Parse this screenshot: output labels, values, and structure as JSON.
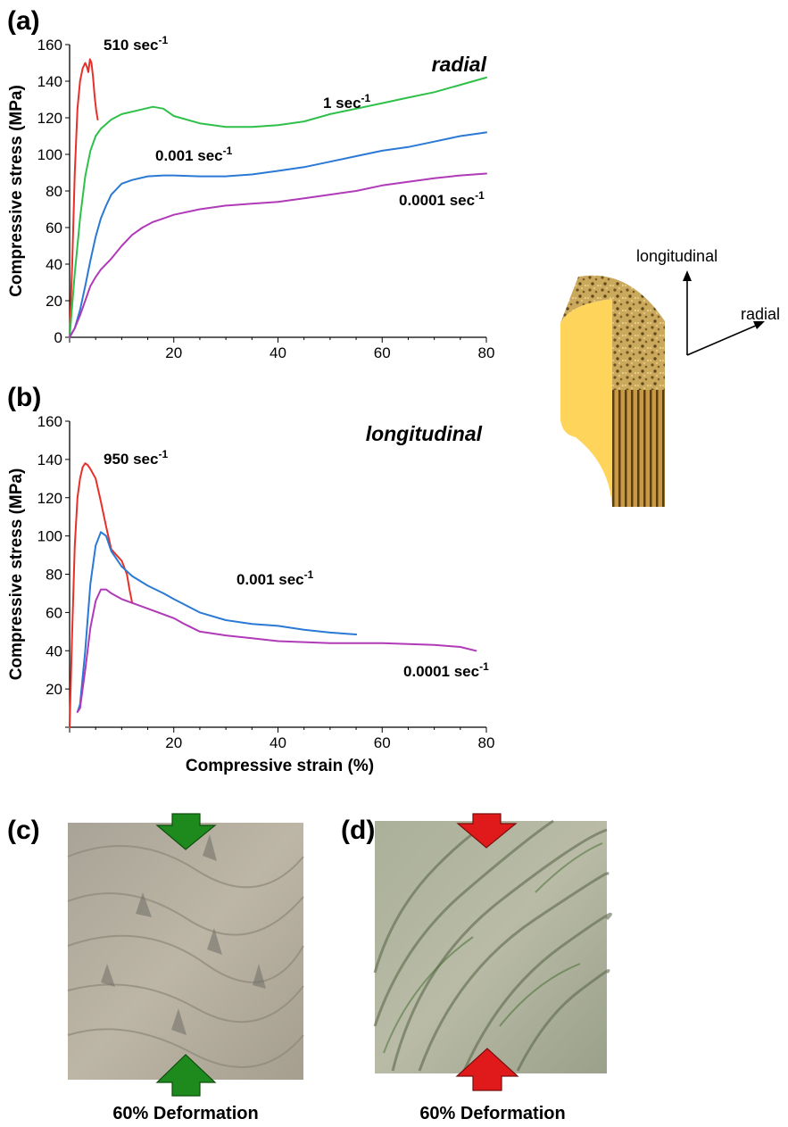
{
  "panels": {
    "a": "(a)",
    "b": "(b)",
    "c": "(c)",
    "d": "(d)"
  },
  "schematic": {
    "longitudinal_label": "longitudinal",
    "radial_label": "radial"
  },
  "photos": {
    "c": {
      "caption": "60% Deformation",
      "arrow_color": "#1e8a1e"
    },
    "d": {
      "caption": "60% Deformation",
      "arrow_color": "#e01a1a"
    }
  },
  "chart_data": [
    {
      "type": "line",
      "orientation_label": "radial",
      "xlabel": "",
      "ylabel": "Compressive stress (MPa)",
      "xlim": [
        0,
        80
      ],
      "ylim": [
        0,
        160
      ],
      "xticks": [
        20,
        40,
        60,
        80
      ],
      "yticks": [
        0,
        20,
        40,
        60,
        80,
        100,
        120,
        140,
        160
      ],
      "grid": false,
      "series": [
        {
          "name": "510 sec-1",
          "label_main": "510 sec",
          "label_exp": "-1",
          "color": "#e8302a",
          "x": [
            0,
            0.5,
            1,
            1.5,
            2,
            2.5,
            3,
            3.3,
            3.6,
            3.9,
            4.2,
            4.5,
            4.8,
            5.1,
            5.4
          ],
          "y": [
            0,
            40,
            90,
            125,
            140,
            147,
            150,
            148,
            145,
            152,
            150,
            142,
            132,
            124,
            119
          ]
        },
        {
          "name": "1 sec-1",
          "label_main": "1 sec",
          "label_exp": "-1",
          "color": "#2fc04a",
          "x": [
            0,
            1,
            2,
            3,
            4,
            5,
            6,
            8,
            10,
            13,
            16,
            18,
            20,
            25,
            30,
            35,
            40,
            45,
            50,
            55,
            60,
            65,
            70,
            75,
            80
          ],
          "y": [
            0,
            35,
            65,
            88,
            102,
            110,
            114,
            119,
            122,
            124,
            126,
            125,
            121,
            117,
            115,
            115,
            116,
            118,
            122,
            125,
            128,
            131,
            134,
            138,
            142
          ]
        },
        {
          "name": "0.001 sec-1",
          "label_main": "0.001 sec",
          "label_exp": "-1",
          "color": "#2a79d4",
          "x": [
            0,
            1,
            2,
            3,
            4,
            5,
            6,
            7,
            8,
            10,
            12,
            15,
            18,
            20,
            25,
            30,
            35,
            40,
            45,
            50,
            55,
            60,
            65,
            70,
            75,
            80
          ],
          "y": [
            0,
            5,
            15,
            28,
            42,
            55,
            65,
            72,
            78,
            84,
            86,
            88,
            88.5,
            88.5,
            88,
            88,
            89,
            91,
            93,
            96,
            99,
            102,
            104,
            107,
            110,
            112
          ]
        },
        {
          "name": "0.0001 sec-1",
          "label_main": "0.0001 sec",
          "label_exp": "-1",
          "color": "#b03ab8",
          "x": [
            0,
            1,
            2,
            3,
            4,
            5,
            6,
            8,
            10,
            12,
            14,
            16,
            18,
            20,
            25,
            30,
            35,
            40,
            45,
            50,
            55,
            60,
            65,
            70,
            75,
            80
          ],
          "y": [
            0,
            5,
            12,
            20,
            28,
            33,
            37,
            43,
            50,
            56,
            60,
            63,
            65,
            67,
            70,
            72,
            73,
            74,
            76,
            78,
            80,
            83,
            85,
            87,
            88.5,
            89.5
          ]
        }
      ]
    },
    {
      "type": "line",
      "orientation_label": "longitudinal",
      "xlabel": "Compressive strain (%)",
      "ylabel": "Compressive stress (MPa)",
      "xlim": [
        0,
        80
      ],
      "ylim": [
        0,
        160
      ],
      "xticks": [
        20,
        40,
        60,
        80
      ],
      "yticks": [
        20,
        40,
        60,
        80,
        100,
        120,
        140,
        160
      ],
      "grid": false,
      "series": [
        {
          "name": "950 sec-1",
          "label_main": "950 sec",
          "label_exp": "-1",
          "color": "#e8302a",
          "x": [
            0,
            0.5,
            1,
            1.5,
            2,
            2.5,
            3,
            3.5,
            4,
            5,
            6,
            7,
            8,
            9,
            10,
            11,
            11.5,
            12
          ],
          "y": [
            0,
            50,
            95,
            120,
            130,
            136,
            138,
            137,
            135,
            130,
            118,
            105,
            93,
            90,
            87,
            80,
            72,
            65
          ]
        },
        {
          "name": "0.001 sec-1",
          "label_main": "0.001 sec",
          "label_exp": "-1",
          "color": "#2a79d4",
          "x": [
            1.5,
            2,
            3,
            4,
            5,
            6,
            7,
            8,
            10,
            12,
            15,
            18,
            20,
            25,
            30,
            35,
            40,
            45,
            50,
            55
          ],
          "y": [
            8,
            12,
            40,
            75,
            95,
            102,
            100,
            92,
            84,
            79,
            74,
            70,
            67,
            60,
            56,
            54,
            53,
            51,
            49.5,
            48.5
          ]
        },
        {
          "name": "0.0001 sec-1",
          "label_main": "0.0001 sec",
          "label_exp": "-1",
          "color": "#b03ab8",
          "x": [
            1.5,
            2,
            3,
            4,
            5,
            6,
            7,
            8,
            10,
            12,
            15,
            18,
            20,
            22,
            25,
            30,
            35,
            40,
            45,
            50,
            55,
            60,
            65,
            70,
            75,
            78
          ],
          "y": [
            8,
            10,
            30,
            52,
            66,
            72,
            72,
            70,
            67,
            65,
            62,
            59,
            57,
            54,
            50,
            48,
            46.5,
            45,
            44.5,
            44,
            44,
            44,
            43.5,
            43,
            42,
            40
          ]
        }
      ]
    }
  ]
}
